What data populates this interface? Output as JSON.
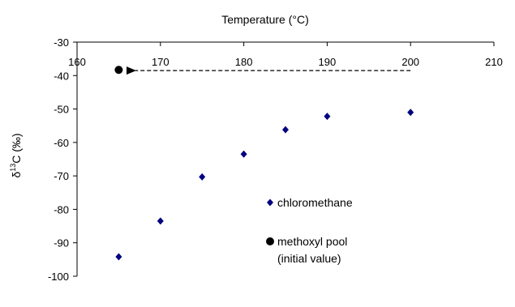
{
  "chart_data": {
    "type": "scatter",
    "title": "",
    "xlabel": "Temperature (°C)",
    "ylabel_parts": [
      "δ",
      "13",
      "C (‰)"
    ],
    "xlim": [
      160,
      210
    ],
    "ylim": [
      -100,
      -30
    ],
    "x_ticks": [
      "160",
      "170",
      "180",
      "190",
      "200",
      "210"
    ],
    "y_ticks": [
      "-30",
      "-40",
      "-50",
      "-60",
      "-70",
      "-80",
      "-90",
      "-100"
    ],
    "x_axis_position": "top",
    "grid": false,
    "legend_position": "inside-bottom-right",
    "series": [
      {
        "name": "chloromethane",
        "marker": "diamond",
        "color": "#000080",
        "points": [
          {
            "x": 165,
            "y": -94.2
          },
          {
            "x": 170,
            "y": -83.5
          },
          {
            "x": 175,
            "y": -70.3
          },
          {
            "x": 180,
            "y": -63.5
          },
          {
            "x": 185,
            "y": -56.2
          },
          {
            "x": 190,
            "y": -52.2
          },
          {
            "x": 200,
            "y": -51.0
          }
        ]
      },
      {
        "name": "methoxyl pool",
        "name_line2": "(initial value)",
        "marker": "circle",
        "color": "#000000",
        "points": [
          {
            "x": 165,
            "y": -38.3
          }
        ]
      }
    ],
    "annotations": [
      {
        "type": "dashed-arrow",
        "from": {
          "x": 200,
          "y": -38.5
        },
        "to": {
          "x": 167,
          "y": -38.5
        }
      }
    ]
  }
}
